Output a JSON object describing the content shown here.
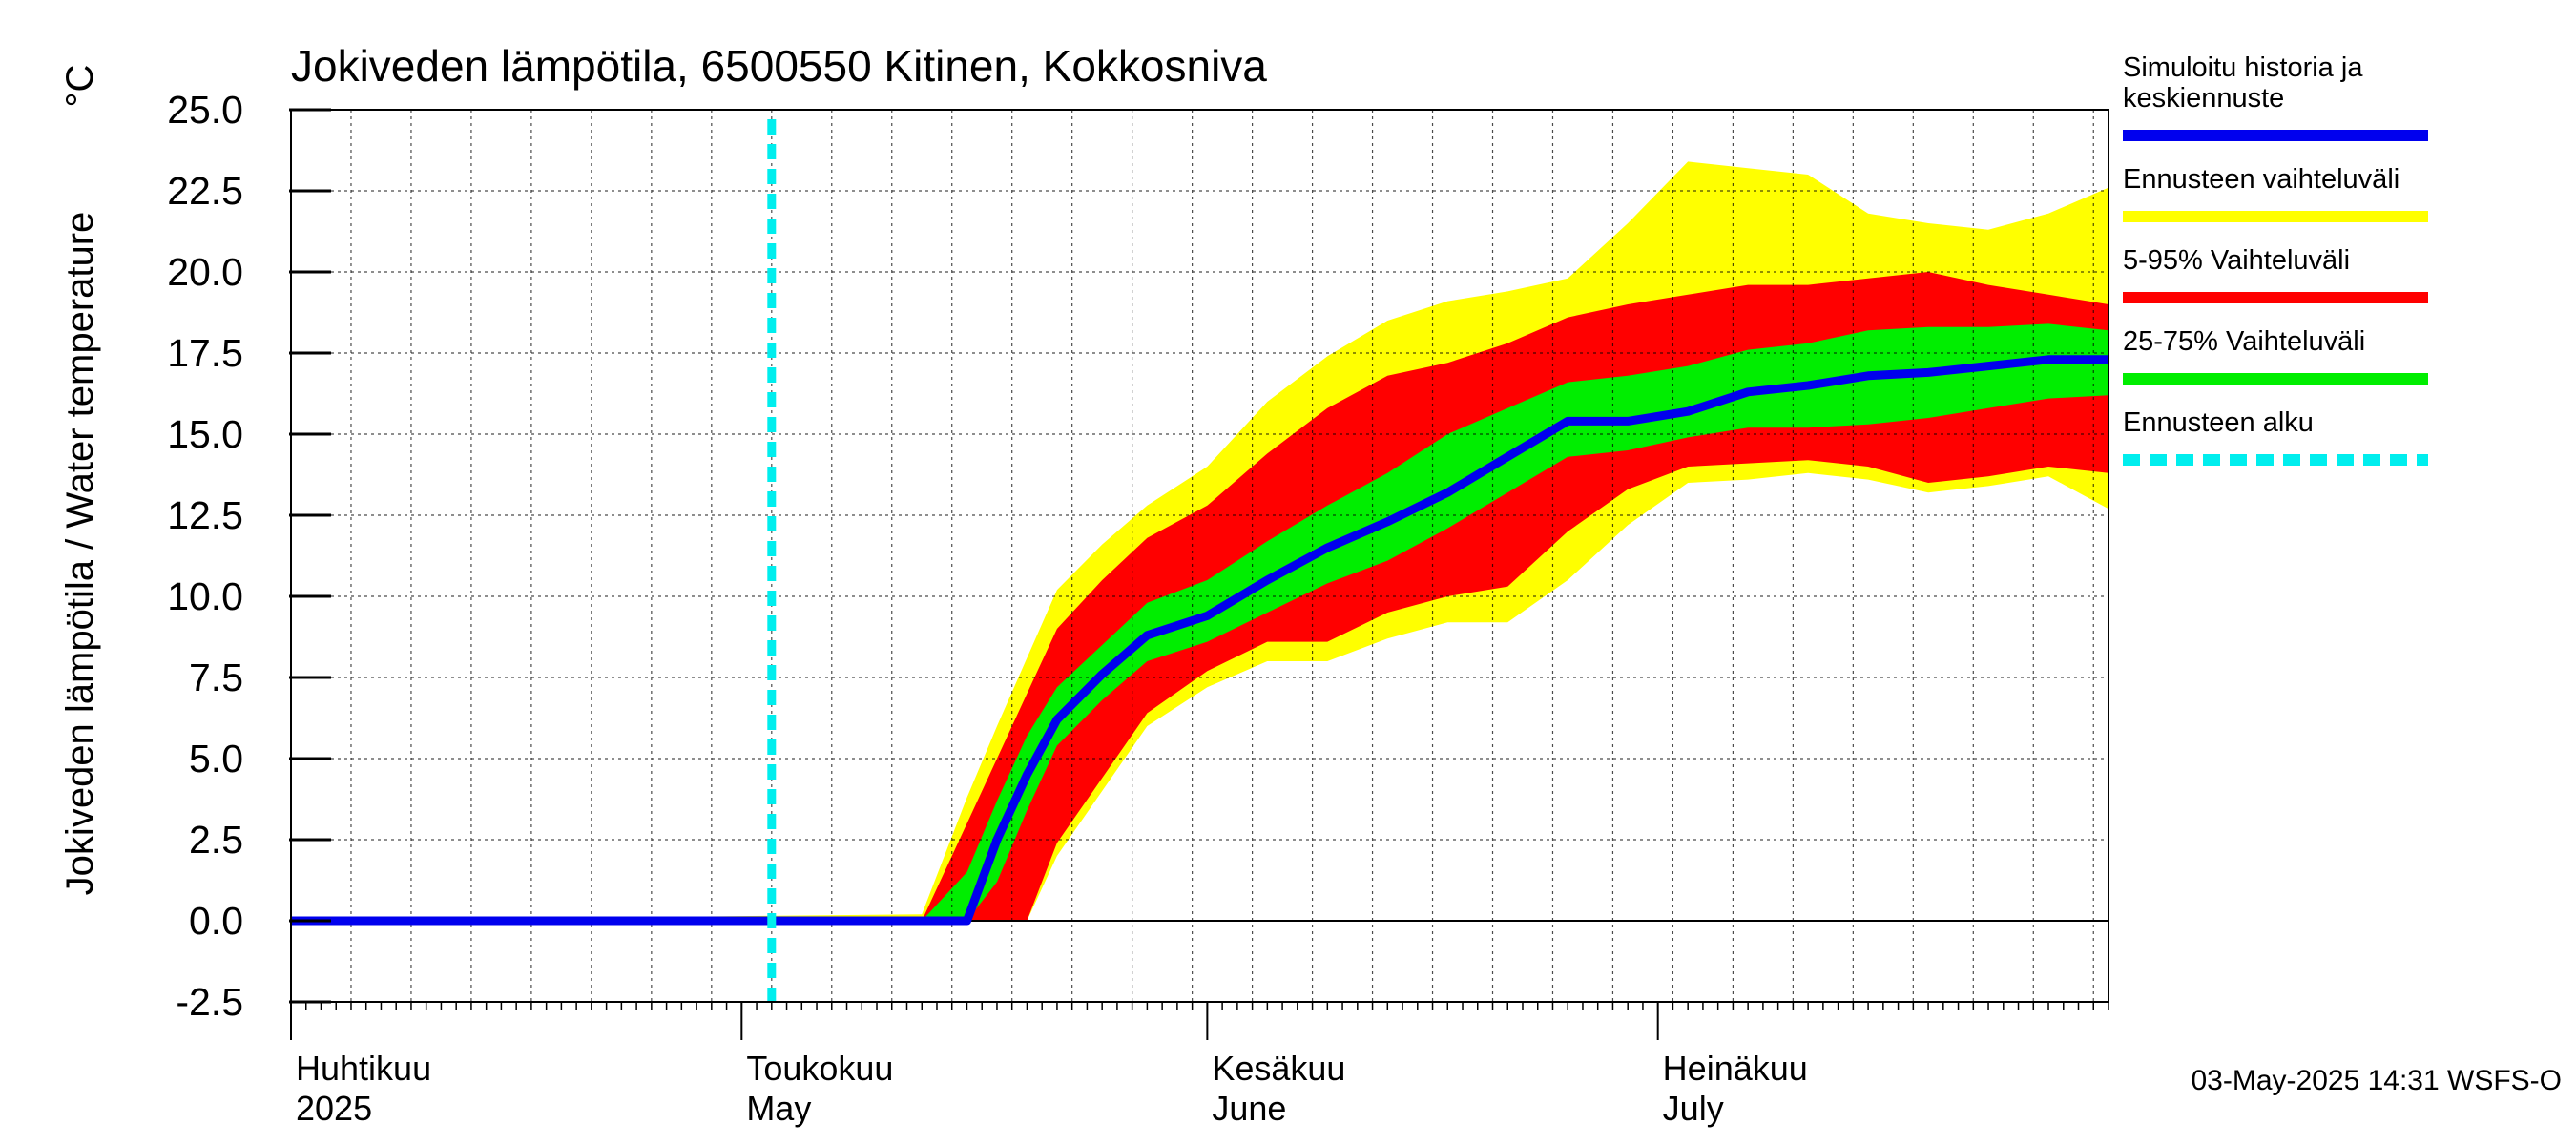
{
  "chart_data": {
    "type": "area",
    "title": "Jokiveden lämpötila, 6500550 Kitinen, Kokkosniva",
    "ylabel": "Jokiveden lämpötila / Water temperature",
    "yunit": "°C",
    "ylim": [
      -2.5,
      25.0
    ],
    "yticks": [
      "25.0",
      "22.5",
      "20.0",
      "17.5",
      "15.0",
      "12.5",
      "10.0",
      "7.5",
      "5.0",
      "2.5",
      "0.0",
      "-2.5"
    ],
    "xlim": [
      "2025-04-01",
      "2025-07-31"
    ],
    "grid": true,
    "legend_position": "right",
    "month_labels": [
      {
        "date": "2025-04-01",
        "fi": "Huhtikuu",
        "en": "2025"
      },
      {
        "date": "2025-05-01",
        "fi": "Toukokuu",
        "en": "May"
      },
      {
        "date": "2025-06-01",
        "fi": "Kesäkuu",
        "en": "June"
      },
      {
        "date": "2025-07-01",
        "fi": "Heinäkuu",
        "en": "July"
      }
    ],
    "forecast_start": "2025-05-03",
    "legend": [
      {
        "label": "Simuloitu historia ja keskiennuste",
        "color": "#0000ee",
        "style": "solid"
      },
      {
        "label": "Ennusteen vaihteluväli",
        "color": "#ffff00",
        "style": "solid"
      },
      {
        "label": "5-95% Vaihteluväli",
        "color": "#ff0000",
        "style": "solid"
      },
      {
        "label": "25-75% Vaihteluväli",
        "color": "#00ee00",
        "style": "solid"
      },
      {
        "label": "Ennusteen alku",
        "color": "#00eeee",
        "style": "dashed"
      }
    ],
    "x": [
      "2025-04-01",
      "2025-05-13",
      "2025-05-16",
      "2025-05-18",
      "2025-05-20",
      "2025-05-22",
      "2025-05-25",
      "2025-05-28",
      "2025-06-01",
      "2025-06-05",
      "2025-06-09",
      "2025-06-13",
      "2025-06-17",
      "2025-06-21",
      "2025-06-25",
      "2025-06-29",
      "2025-07-03",
      "2025-07-07",
      "2025-07-11",
      "2025-07-15",
      "2025-07-19",
      "2025-07-23",
      "2025-07-27",
      "2025-07-31"
    ],
    "series": [
      {
        "name": "Simuloitu historia ja keskiennuste",
        "values": [
          0.0,
          0.0,
          0.0,
          2.5,
          4.5,
          6.2,
          7.6,
          8.8,
          9.4,
          10.5,
          11.5,
          12.3,
          13.2,
          14.3,
          15.4,
          15.4,
          15.7,
          16.3,
          16.5,
          16.8,
          16.9,
          17.1,
          17.3,
          17.3
        ]
      },
      {
        "name": "Ennusteen vaihteluväli (min)",
        "values": [
          0.0,
          0.0,
          0.0,
          0.0,
          0.0,
          2.0,
          4.0,
          6.0,
          7.2,
          8.0,
          8.0,
          8.7,
          9.2,
          9.2,
          10.5,
          12.2,
          13.5,
          13.6,
          13.8,
          13.6,
          13.2,
          13.4,
          13.7,
          12.7
        ]
      },
      {
        "name": "5% Vaihteluväli",
        "values": [
          0.0,
          0.0,
          0.0,
          0.0,
          0.0,
          2.4,
          4.4,
          6.4,
          7.7,
          8.6,
          8.6,
          9.5,
          10.0,
          10.3,
          12.0,
          13.3,
          14.0,
          14.1,
          14.2,
          14.0,
          13.5,
          13.7,
          14.0,
          13.8
        ]
      },
      {
        "name": "25% Vaihteluväli",
        "values": [
          0.0,
          0.0,
          0.0,
          1.2,
          3.4,
          5.4,
          6.8,
          8.0,
          8.6,
          9.5,
          10.4,
          11.1,
          12.1,
          13.2,
          14.3,
          14.5,
          14.9,
          15.2,
          15.2,
          15.3,
          15.5,
          15.8,
          16.1,
          16.2
        ]
      },
      {
        "name": "75% Vaihteluväli",
        "values": [
          0.0,
          0.0,
          1.5,
          3.7,
          5.7,
          7.2,
          8.5,
          9.8,
          10.5,
          11.7,
          12.8,
          13.8,
          15.0,
          15.8,
          16.6,
          16.8,
          17.1,
          17.6,
          17.8,
          18.2,
          18.3,
          18.3,
          18.4,
          18.2
        ]
      },
      {
        "name": "95% Vaihteluväli",
        "values": [
          0.0,
          0.0,
          3.0,
          5.0,
          7.0,
          9.0,
          10.5,
          11.8,
          12.8,
          14.4,
          15.8,
          16.8,
          17.2,
          17.8,
          18.6,
          19.0,
          19.3,
          19.6,
          19.6,
          19.8,
          20.0,
          19.6,
          19.3,
          19.0
        ]
      },
      {
        "name": "Ennusteen vaihteluväli (max)",
        "values": [
          0.0,
          0.2,
          3.8,
          6.0,
          8.1,
          10.2,
          11.6,
          12.8,
          14.0,
          16.0,
          17.4,
          18.5,
          19.1,
          19.4,
          19.8,
          21.5,
          23.4,
          23.2,
          23.0,
          21.8,
          21.5,
          21.3,
          21.8,
          22.6
        ]
      }
    ]
  },
  "footer": {
    "timestamp": "03-May-2025 14:31 WSFS-O"
  }
}
